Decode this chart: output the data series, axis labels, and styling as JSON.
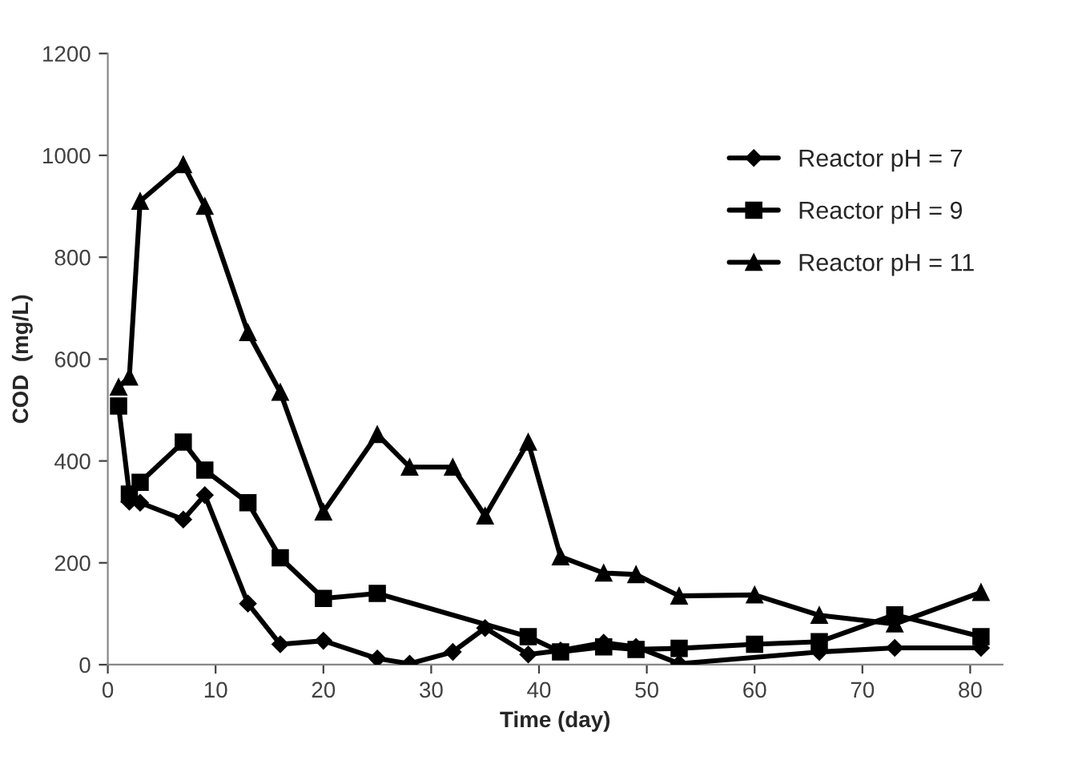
{
  "chart_data": {
    "type": "line",
    "xlabel": "Time (day)",
    "ylabel": "COD  (mg/L)",
    "xlim": [
      0,
      83
    ],
    "xticks": [
      0,
      10,
      20,
      30,
      40,
      50,
      60,
      70,
      80
    ],
    "ylim": [
      0,
      1200
    ],
    "yticks": [
      0,
      200,
      400,
      600,
      800,
      1000,
      1200
    ],
    "grid": false,
    "legend": "right",
    "line_style": "solid",
    "series": [
      {
        "name": "Reactor pH = 7",
        "color": "#000000",
        "marker": "diamond",
        "x": [
          2,
          3,
          7,
          9,
          13,
          16,
          20,
          25,
          28,
          32,
          35,
          39,
          42,
          46,
          49,
          53,
          66,
          73,
          81
        ],
        "values": [
          320,
          318,
          285,
          333,
          120,
          40,
          47,
          12,
          2,
          25,
          72,
          20,
          28,
          43,
          35,
          2,
          25,
          33,
          33
        ]
      },
      {
        "name": "Reactor pH = 9",
        "color": "#000000",
        "marker": "square",
        "x": [
          1,
          2,
          3,
          7,
          9,
          13,
          16,
          20,
          25,
          39,
          42,
          46,
          49,
          53,
          60,
          66,
          73,
          81
        ],
        "values": [
          508,
          335,
          358,
          437,
          382,
          318,
          210,
          130,
          140,
          55,
          25,
          35,
          30,
          32,
          40,
          45,
          98,
          55
        ]
      },
      {
        "name": "Reactor pH = 11",
        "color": "#000000",
        "marker": "triangle",
        "x": [
          1,
          2,
          3,
          7,
          9,
          13,
          16,
          20,
          25,
          28,
          32,
          35,
          39,
          42,
          46,
          49,
          53,
          60,
          66,
          73,
          81
        ],
        "values": [
          545,
          565,
          910,
          982,
          900,
          652,
          535,
          300,
          452,
          388,
          388,
          292,
          437,
          212,
          180,
          177,
          135,
          137,
          97,
          80,
          142
        ]
      }
    ]
  }
}
